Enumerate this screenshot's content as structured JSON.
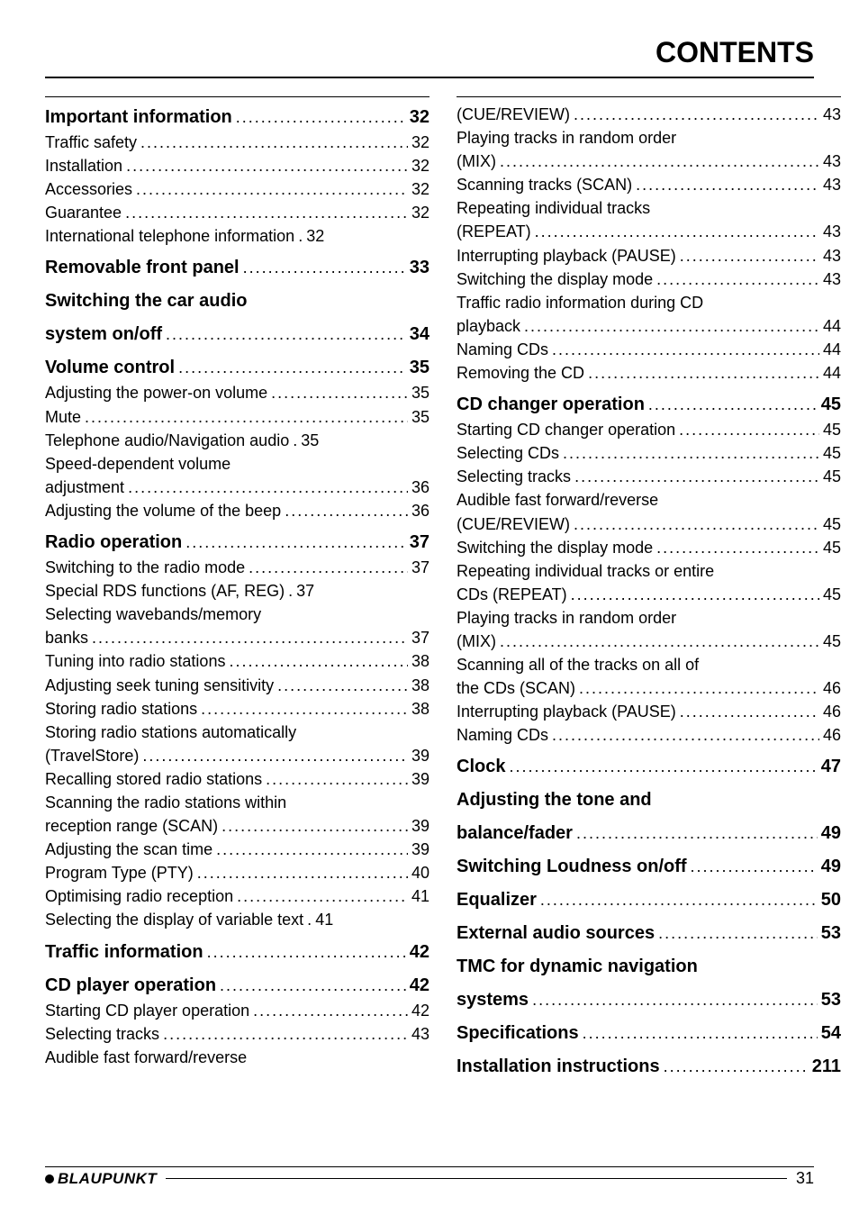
{
  "header": "CONTENTS",
  "footer_brand": "BLAUPUNKT",
  "footer_page": "31",
  "left_column": [
    {
      "label": "Important information",
      "page": "32",
      "section": true
    },
    {
      "label": "Traffic safety",
      "page": "32"
    },
    {
      "label": "Installation",
      "page": "32"
    },
    {
      "label": "Accessories",
      "page": "32"
    },
    {
      "label": "Guarantee",
      "page": "32"
    },
    {
      "label": "International telephone information",
      "page": "32",
      "tight": true
    },
    {
      "label": "Removable front panel",
      "page": "33",
      "section": true
    },
    {
      "label": "Switching the car audio\nsystem on/off",
      "page": "34",
      "section": true
    },
    {
      "label": "Volume control",
      "page": "35",
      "section": true
    },
    {
      "label": "Adjusting the power-on volume",
      "page": "35"
    },
    {
      "label": "Mute",
      "page": "35"
    },
    {
      "label": "Telephone audio/Navigation audio",
      "page": "35",
      "tight": true
    },
    {
      "label": "Speed-dependent volume\nadjustment",
      "page": "36"
    },
    {
      "label": "Adjusting the volume of the beep",
      "page": "36"
    },
    {
      "label": "Radio operation",
      "page": "37",
      "section": true
    },
    {
      "label": "Switching to the radio mode",
      "page": "37"
    },
    {
      "label": "Special RDS functions (AF, REG)",
      "page": "37",
      "tight": true
    },
    {
      "label": "Selecting wavebands/memory\nbanks",
      "page": "37"
    },
    {
      "label": "Tuning into radio stations",
      "page": "38"
    },
    {
      "label": "Adjusting seek tuning sensitivity",
      "page": "38"
    },
    {
      "label": "Storing radio stations",
      "page": "38"
    },
    {
      "label": "Storing radio stations automatically\n(TravelStore)",
      "page": "39"
    },
    {
      "label": "Recalling stored radio stations",
      "page": "39"
    },
    {
      "label": "Scanning the radio stations within\nreception range (SCAN)",
      "page": "39"
    },
    {
      "label": "Adjusting the scan time",
      "page": "39"
    },
    {
      "label": "Program Type (PTY)",
      "page": "40"
    },
    {
      "label": "Optimising radio reception",
      "page": "41"
    },
    {
      "label": "Selecting the display of variable text",
      "page": "41",
      "tight": true
    },
    {
      "label": "Traffic information",
      "page": "42",
      "section": true
    },
    {
      "label": "CD player operation",
      "page": "42",
      "section": true
    },
    {
      "label": "Starting CD player operation",
      "page": "42"
    },
    {
      "label": "Selecting tracks",
      "page": "43"
    },
    {
      "label": "Audible fast forward/reverse",
      "nopagelabel": true
    }
  ],
  "right_column": [
    {
      "label": "(CUE/REVIEW)",
      "page": "43"
    },
    {
      "label": "Playing tracks in random order\n(MIX)",
      "page": "43"
    },
    {
      "label": "Scanning tracks (SCAN)",
      "page": "43"
    },
    {
      "label": "Repeating individual tracks\n(REPEAT)",
      "page": "43"
    },
    {
      "label": "Interrupting playback (PAUSE)",
      "page": "43"
    },
    {
      "label": "Switching the display mode",
      "page": "43"
    },
    {
      "label": "Traffic radio information during CD\nplayback",
      "page": "44"
    },
    {
      "label": "Naming CDs",
      "page": "44"
    },
    {
      "label": "Removing the CD",
      "page": "44"
    },
    {
      "label": "CD changer operation",
      "page": "45",
      "section": true
    },
    {
      "label": "Starting CD changer operation",
      "page": "45"
    },
    {
      "label": "Selecting CDs",
      "page": "45"
    },
    {
      "label": "Selecting tracks",
      "page": "45"
    },
    {
      "label": "Audible fast forward/reverse\n(CUE/REVIEW)",
      "page": "45"
    },
    {
      "label": "Switching the display mode",
      "page": "45"
    },
    {
      "label": "Repeating individual tracks or entire\nCDs (REPEAT)",
      "page": "45"
    },
    {
      "label": "Playing tracks in random order\n(MIX)",
      "page": "45"
    },
    {
      "label": "Scanning all of the tracks on all of\nthe CDs (SCAN)",
      "page": "46"
    },
    {
      "label": "Interrupting playback (PAUSE)",
      "page": "46"
    },
    {
      "label": "Naming CDs",
      "page": "46"
    },
    {
      "label": "Clock",
      "page": "47",
      "section": true
    },
    {
      "label": "Adjusting the tone and\nbalance/fader",
      "page": "49",
      "section": true
    },
    {
      "label": "Switching Loudness on/off",
      "page": "49",
      "section": true
    },
    {
      "label": "Equalizer",
      "page": "50",
      "section": true
    },
    {
      "label": "External audio sources",
      "page": "53",
      "section": true
    },
    {
      "label": "TMC for dynamic navigation\nsystems",
      "page": "53",
      "section": true
    },
    {
      "label": "Specifications",
      "page": "54",
      "section": true
    },
    {
      "label": "Installation instructions",
      "page": "211",
      "section": true
    }
  ]
}
